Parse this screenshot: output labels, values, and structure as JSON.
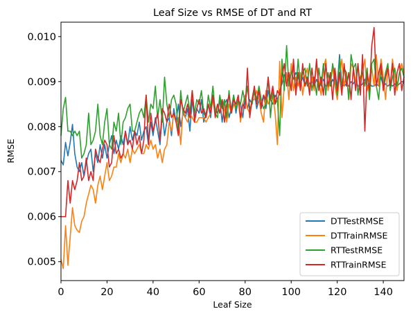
{
  "chart_data": {
    "type": "line",
    "title": "Leaf Size vs RMSE of DT and RT",
    "xlabel": "Leaf Size",
    "ylabel": "RMSE",
    "xlim": [
      0,
      149
    ],
    "ylim": [
      0.00458,
      0.01032
    ],
    "x_ticks": [
      0,
      20,
      40,
      60,
      80,
      100,
      120,
      140
    ],
    "y_ticks": [
      0.005,
      0.006,
      0.007,
      0.008,
      0.009,
      0.01
    ],
    "y_tick_labels": [
      "0.005",
      "0.006",
      "0.007",
      "0.008",
      "0.009",
      "0.010"
    ],
    "grid": false,
    "legend_position": "lower-right",
    "x": [
      0,
      1,
      2,
      3,
      4,
      5,
      6,
      7,
      8,
      9,
      10,
      11,
      12,
      13,
      14,
      15,
      16,
      17,
      18,
      19,
      20,
      21,
      22,
      23,
      24,
      25,
      26,
      27,
      28,
      29,
      30,
      31,
      32,
      33,
      34,
      35,
      36,
      37,
      38,
      39,
      40,
      41,
      42,
      43,
      44,
      45,
      46,
      47,
      48,
      49,
      50,
      51,
      52,
      53,
      54,
      55,
      56,
      57,
      58,
      59,
      60,
      61,
      62,
      63,
      64,
      65,
      66,
      67,
      68,
      69,
      70,
      71,
      72,
      73,
      74,
      75,
      76,
      77,
      78,
      79,
      80,
      81,
      82,
      83,
      84,
      85,
      86,
      87,
      88,
      89,
      90,
      91,
      92,
      93,
      94,
      95,
      96,
      97,
      98,
      99,
      100,
      101,
      102,
      103,
      104,
      105,
      106,
      107,
      108,
      109,
      110,
      111,
      112,
      113,
      114,
      115,
      116,
      117,
      118,
      119,
      120,
      121,
      122,
      123,
      124,
      125,
      126,
      127,
      128,
      129,
      130,
      131,
      132,
      133,
      134,
      135,
      136,
      137,
      138,
      139,
      140,
      141,
      142,
      143,
      144,
      145,
      146,
      147,
      148,
      149
    ],
    "series": [
      {
        "name": "DTTestRMSE",
        "color": "#1f77b4",
        "values": [
          0.00725,
          0.00715,
          0.00765,
          0.00735,
          0.00765,
          0.00805,
          0.0074,
          0.0071,
          0.007,
          0.0072,
          0.0069,
          0.0072,
          0.0074,
          0.0075,
          0.007,
          0.0074,
          0.0072,
          0.0076,
          0.0073,
          0.0076,
          0.0073,
          0.0076,
          0.0078,
          0.0074,
          0.0077,
          0.0075,
          0.0078,
          0.0076,
          0.0079,
          0.0076,
          0.008,
          0.0077,
          0.0079,
          0.0078,
          0.0081,
          0.0077,
          0.0079,
          0.008,
          0.0076,
          0.0081,
          0.0078,
          0.0082,
          0.0079,
          0.0076,
          0.0083,
          0.0078,
          0.0081,
          0.0082,
          0.0078,
          0.0084,
          0.0081,
          0.0085,
          0.008,
          0.0083,
          0.0082,
          0.0084,
          0.0079,
          0.0086,
          0.0082,
          0.0084,
          0.0083,
          0.0086,
          0.0081,
          0.0083,
          0.0085,
          0.0082,
          0.0087,
          0.0084,
          0.0083,
          0.0086,
          0.0081,
          0.0085,
          0.0086,
          0.0082,
          0.0084,
          0.0087,
          0.0083,
          0.0086,
          0.0085,
          0.0082,
          0.0087,
          0.0084,
          0.0086,
          0.0085,
          0.0088,
          0.0084,
          0.0086,
          0.0085,
          0.0087,
          0.0084,
          0.0088,
          0.0086,
          0.0085,
          0.0087,
          0.0086,
          0.0088,
          0.00895,
          0.00915,
          0.0092,
          0.009,
          0.00925,
          0.00905,
          0.0092,
          0.0091,
          0.00895,
          0.0091,
          0.0089,
          0.00905,
          0.00895,
          0.009,
          0.0089,
          0.00905,
          0.0089,
          0.00895,
          0.00905,
          0.0089,
          0.00895,
          0.0089,
          0.00905,
          0.00895,
          0.0089,
          0.0096,
          0.00895,
          0.0089,
          0.00895,
          0.0089,
          0.009,
          0.00895,
          0.00905,
          0.0089,
          0.0089,
          0.00895,
          0.00905,
          0.0089,
          0.00895,
          0.0089,
          0.0089,
          0.00895,
          0.0089,
          0.0091,
          0.0089,
          0.00895,
          0.0089,
          0.00895,
          0.0089,
          0.00895,
          0.0089,
          0.00895,
          0.009,
          0.009
        ]
      },
      {
        "name": "DTTrainRMSE",
        "color": "#ff7f0e",
        "values": [
          0.00505,
          0.00485,
          0.0058,
          0.00492,
          0.00555,
          0.0062,
          0.0058,
          0.0057,
          0.00565,
          0.0059,
          0.006,
          0.0063,
          0.0065,
          0.0067,
          0.0066,
          0.0063,
          0.0067,
          0.0069,
          0.0066,
          0.0069,
          0.0072,
          0.0068,
          0.0069,
          0.0071,
          0.0071,
          0.0074,
          0.0072,
          0.0074,
          0.0073,
          0.0075,
          0.0072,
          0.0075,
          0.0074,
          0.0075,
          0.0076,
          0.0074,
          0.0074,
          0.0076,
          0.0075,
          0.0077,
          0.0075,
          0.0076,
          0.0073,
          0.0075,
          0.0072,
          0.0075,
          0.0076,
          0.0081,
          0.0079,
          0.0083,
          0.0081,
          0.0082,
          0.0076,
          0.0084,
          0.0082,
          0.0081,
          0.0083,
          0.0082,
          0.0081,
          0.0081,
          0.0082,
          0.0082,
          0.0082,
          0.0081,
          0.0082,
          0.0083,
          0.0086,
          0.0083,
          0.0085,
          0.0083,
          0.0086,
          0.0084,
          0.0081,
          0.0085,
          0.0083,
          0.0085,
          0.0084,
          0.0086,
          0.0081,
          0.0085,
          0.0087,
          0.0084,
          0.0083,
          0.0086,
          0.0086,
          0.0088,
          0.0086,
          0.0083,
          0.0081,
          0.0088,
          0.0085,
          0.0086,
          0.0087,
          0.0083,
          0.0076,
          0.00945,
          0.0082,
          0.0089,
          0.0092,
          0.0086,
          0.0094,
          0.0088,
          0.0091,
          0.0089,
          0.0092,
          0.0087,
          0.0091,
          0.0093,
          0.0088,
          0.0091,
          0.0088,
          0.0094,
          0.009,
          0.0087,
          0.0093,
          0.0095,
          0.0088,
          0.0091,
          0.0093,
          0.0089,
          0.0086,
          0.0091,
          0.0095,
          0.0089,
          0.0092,
          0.0086,
          0.0094,
          0.0093,
          0.009,
          0.0094,
          0.0089,
          0.0092,
          0.0095,
          0.0088,
          0.0091,
          0.0093,
          0.0089,
          0.0096,
          0.0089,
          0.0095,
          0.0091,
          0.0086,
          0.0093,
          0.0089,
          0.0095,
          0.0091,
          0.0088,
          0.0092,
          0.0094,
          0.0092
        ]
      },
      {
        "name": "RTTestRMSE",
        "color": "#2ca02c",
        "values": [
          0.0078,
          0.0084,
          0.00865,
          0.0079,
          0.0079,
          0.0078,
          0.0079,
          0.0078,
          0.0079,
          0.0073,
          0.0074,
          0.0076,
          0.0083,
          0.0076,
          0.0077,
          0.0079,
          0.0085,
          0.0078,
          0.0076,
          0.0081,
          0.0084,
          0.0076,
          0.0075,
          0.0081,
          0.0079,
          0.0083,
          0.0076,
          0.0081,
          0.0082,
          0.0084,
          0.0085,
          0.0079,
          0.0079,
          0.0081,
          0.0083,
          0.0084,
          0.0082,
          0.0087,
          0.0081,
          0.0085,
          0.0084,
          0.0089,
          0.0082,
          0.0086,
          0.0081,
          0.0091,
          0.0085,
          0.0082,
          0.0086,
          0.0087,
          0.0085,
          0.0079,
          0.0088,
          0.0083,
          0.0085,
          0.0087,
          0.0083,
          0.0088,
          0.0083,
          0.0086,
          0.0085,
          0.0088,
          0.0083,
          0.0082,
          0.0087,
          0.0084,
          0.0089,
          0.0083,
          0.0082,
          0.0087,
          0.0084,
          0.0086,
          0.0082,
          0.0088,
          0.0083,
          0.0087,
          0.0084,
          0.0086,
          0.0085,
          0.0088,
          0.0085,
          0.0089,
          0.0084,
          0.0085,
          0.0088,
          0.0086,
          0.0089,
          0.0086,
          0.0084,
          0.0085,
          0.0091,
          0.0082,
          0.0088,
          0.0085,
          0.0086,
          0.0078,
          0.0095,
          0.0088,
          0.0098,
          0.0089,
          0.0092,
          0.0093,
          0.0088,
          0.0095,
          0.0089,
          0.0092,
          0.0093,
          0.0089,
          0.0094,
          0.0088,
          0.0091,
          0.0087,
          0.0093,
          0.0089,
          0.0094,
          0.0087,
          0.0092,
          0.0089,
          0.0094,
          0.0091,
          0.0087,
          0.0095,
          0.0088,
          0.0093,
          0.0092,
          0.0086,
          0.0096,
          0.0093,
          0.0094,
          0.0087,
          0.0091,
          0.0092,
          0.0089,
          0.0093,
          0.0086,
          0.0094,
          0.0095,
          0.0089,
          0.0086,
          0.0093,
          0.0089,
          0.0092,
          0.0094,
          0.0088,
          0.0091,
          0.0093,
          0.0089,
          0.0092,
          0.0093,
          0.0091
        ]
      },
      {
        "name": "RTTrainRMSE",
        "color": "#d62728",
        "values": [
          0.006,
          0.006,
          0.006,
          0.0068,
          0.0063,
          0.0068,
          0.0066,
          0.0068,
          0.0072,
          0.0068,
          0.0069,
          0.0073,
          0.0068,
          0.007,
          0.0068,
          0.0075,
          0.0073,
          0.0072,
          0.0075,
          0.0077,
          0.0076,
          0.0071,
          0.0072,
          0.0078,
          0.0074,
          0.0075,
          0.0073,
          0.0074,
          0.0079,
          0.0076,
          0.0077,
          0.0075,
          0.0079,
          0.0076,
          0.0078,
          0.0074,
          0.0077,
          0.0087,
          0.0076,
          0.0083,
          0.0079,
          0.0081,
          0.0083,
          0.0077,
          0.0084,
          0.0083,
          0.0081,
          0.0085,
          0.0082,
          0.0083,
          0.0081,
          0.0078,
          0.0086,
          0.0084,
          0.0083,
          0.0085,
          0.0082,
          0.0088,
          0.0081,
          0.0084,
          0.0086,
          0.0083,
          0.0084,
          0.0082,
          0.0085,
          0.0083,
          0.0087,
          0.0082,
          0.0085,
          0.0083,
          0.0086,
          0.0081,
          0.0085,
          0.0087,
          0.0083,
          0.0086,
          0.0085,
          0.0087,
          0.0082,
          0.0085,
          0.0084,
          0.0093,
          0.0082,
          0.0086,
          0.0089,
          0.0085,
          0.0088,
          0.0084,
          0.0087,
          0.0086,
          0.0091,
          0.0086,
          0.0089,
          0.0085,
          0.0088,
          0.0087,
          0.0091,
          0.0094,
          0.0089,
          0.0092,
          0.0088,
          0.0095,
          0.0087,
          0.0092,
          0.0088,
          0.0094,
          0.0089,
          0.0091,
          0.0087,
          0.0093,
          0.0089,
          0.0095,
          0.0088,
          0.0091,
          0.0087,
          0.0094,
          0.0089,
          0.0092,
          0.0086,
          0.0093,
          0.0088,
          0.0092,
          0.0087,
          0.0094,
          0.0089,
          0.0092,
          0.0086,
          0.0093,
          0.0088,
          0.0094,
          0.0087,
          0.0096,
          0.0079,
          0.0092,
          0.0088,
          0.0098,
          0.0102,
          0.0089,
          0.0092,
          0.0094,
          0.0088,
          0.0091,
          0.0093,
          0.0089,
          0.0094,
          0.0087,
          0.0092,
          0.0094,
          0.0088,
          0.0091
        ]
      }
    ]
  }
}
